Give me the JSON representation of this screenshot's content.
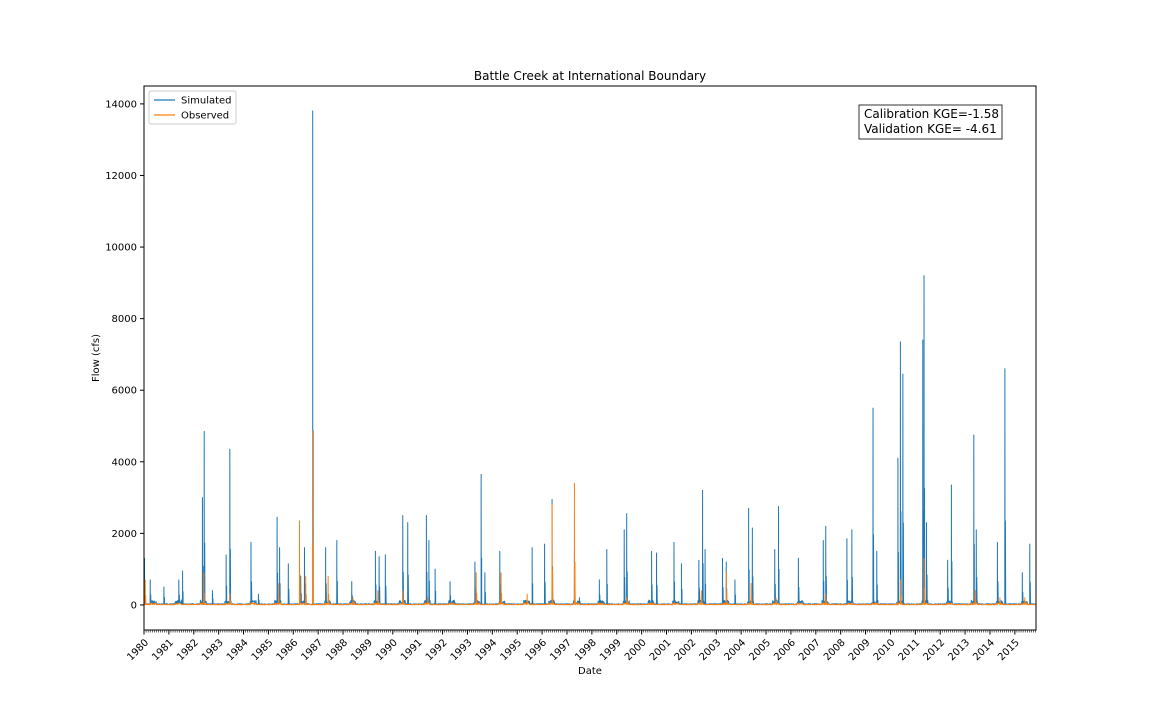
{
  "chart_data": {
    "type": "line",
    "title": "Battle Creek at International Boundary",
    "xlabel": "Date",
    "ylabel": "Flow (cfs)",
    "xlim": [
      1980.0,
      2015.85
    ],
    "ylim": [
      -700,
      14500
    ],
    "y_ticks": [
      0,
      2000,
      4000,
      6000,
      8000,
      10000,
      12000,
      14000
    ],
    "x_ticks": [
      "1980",
      "1981",
      "1982",
      "1983",
      "1984",
      "1985",
      "1986",
      "1987",
      "1988",
      "1989",
      "1990",
      "1991",
      "1992",
      "1993",
      "1994",
      "1995",
      "1996",
      "1997",
      "1998",
      "1999",
      "2000",
      "2001",
      "2002",
      "2003",
      "2004",
      "2005",
      "2006",
      "2007",
      "2008",
      "2009",
      "2010",
      "2011",
      "2012",
      "2013",
      "2014",
      "2015"
    ],
    "legend_position": "top-left",
    "grid": false,
    "annotation": {
      "line1": "Calibration KGE=-1.58",
      "line2": "Validation KGE= -4.61"
    },
    "series": [
      {
        "name": "Simulated",
        "color": "#1f77b4",
        "peaks": [
          [
            1980.02,
            1300
          ],
          [
            1980.25,
            700
          ],
          [
            1980.8,
            500
          ],
          [
            1981.4,
            700
          ],
          [
            1981.55,
            950
          ],
          [
            1982.35,
            3000
          ],
          [
            1982.42,
            4850
          ],
          [
            1982.75,
            400
          ],
          [
            1983.3,
            1400
          ],
          [
            1983.45,
            4350
          ],
          [
            1984.3,
            1750
          ],
          [
            1984.6,
            300
          ],
          [
            1985.35,
            2450
          ],
          [
            1985.45,
            1600
          ],
          [
            1985.8,
            1150
          ],
          [
            1986.3,
            800
          ],
          [
            1986.45,
            1600
          ],
          [
            1986.78,
            13800
          ],
          [
            1987.3,
            1600
          ],
          [
            1987.75,
            1800
          ],
          [
            1988.35,
            650
          ],
          [
            1989.3,
            1500
          ],
          [
            1989.45,
            1350
          ],
          [
            1989.7,
            1400
          ],
          [
            1990.4,
            2500
          ],
          [
            1990.6,
            2300
          ],
          [
            1991.35,
            2500
          ],
          [
            1991.45,
            1800
          ],
          [
            1991.7,
            1000
          ],
          [
            1992.3,
            650
          ],
          [
            1993.3,
            1200
          ],
          [
            1993.55,
            3650
          ],
          [
            1993.7,
            900
          ],
          [
            1994.3,
            1500
          ],
          [
            1995.6,
            1600
          ],
          [
            1996.1,
            1700
          ],
          [
            1996.4,
            2950
          ],
          [
            1997.3,
            1550
          ],
          [
            1997.5,
            200
          ],
          [
            1998.3,
            700
          ],
          [
            1998.6,
            1550
          ],
          [
            1999.3,
            2100
          ],
          [
            1999.4,
            2550
          ],
          [
            2000.4,
            1500
          ],
          [
            2000.6,
            1450
          ],
          [
            2001.3,
            1750
          ],
          [
            2001.6,
            1150
          ],
          [
            2002.3,
            1250
          ],
          [
            2002.45,
            3200
          ],
          [
            2002.55,
            1550
          ],
          [
            2003.25,
            1300
          ],
          [
            2003.4,
            1200
          ],
          [
            2003.75,
            700
          ],
          [
            2004.3,
            2700
          ],
          [
            2004.45,
            2150
          ],
          [
            2005.35,
            1550
          ],
          [
            2005.5,
            2750
          ],
          [
            2006.3,
            1300
          ],
          [
            2007.3,
            1800
          ],
          [
            2007.4,
            2200
          ],
          [
            2008.25,
            1850
          ],
          [
            2008.45,
            2100
          ],
          [
            2009.3,
            5500
          ],
          [
            2009.45,
            1500
          ],
          [
            2010.3,
            4100
          ],
          [
            2010.4,
            7350
          ],
          [
            2010.5,
            6450
          ],
          [
            2011.3,
            7400
          ],
          [
            2011.35,
            9200
          ],
          [
            2011.45,
            2300
          ],
          [
            2012.3,
            1250
          ],
          [
            2012.45,
            3350
          ],
          [
            2013.35,
            4750
          ],
          [
            2013.45,
            2100
          ],
          [
            2014.3,
            1750
          ],
          [
            2014.6,
            6600
          ],
          [
            2015.3,
            900
          ],
          [
            2015.6,
            1700
          ]
        ]
      },
      {
        "name": "Observed",
        "color": "#ff7f0e",
        "peaks": [
          [
            1980.05,
            700
          ],
          [
            1982.4,
            900
          ],
          [
            1983.45,
            300
          ],
          [
            1985.4,
            600
          ],
          [
            1986.25,
            2350
          ],
          [
            1986.5,
            800
          ],
          [
            1986.78,
            4850
          ],
          [
            1987.4,
            800
          ],
          [
            1988.4,
            200
          ],
          [
            1989.4,
            400
          ],
          [
            1990.4,
            400
          ],
          [
            1991.4,
            200
          ],
          [
            1993.35,
            900
          ],
          [
            1994.35,
            900
          ],
          [
            1995.4,
            300
          ],
          [
            1996.4,
            2800
          ],
          [
            1997.3,
            3400
          ],
          [
            1999.4,
            200
          ],
          [
            2002.4,
            400
          ],
          [
            2003.4,
            900
          ],
          [
            2004.4,
            600
          ],
          [
            2005.4,
            200
          ],
          [
            2007.4,
            300
          ],
          [
            2010.4,
            700
          ],
          [
            2011.35,
            1300
          ],
          [
            2013.4,
            400
          ],
          [
            2014.4,
            200
          ],
          [
            2015.4,
            200
          ]
        ]
      }
    ]
  }
}
